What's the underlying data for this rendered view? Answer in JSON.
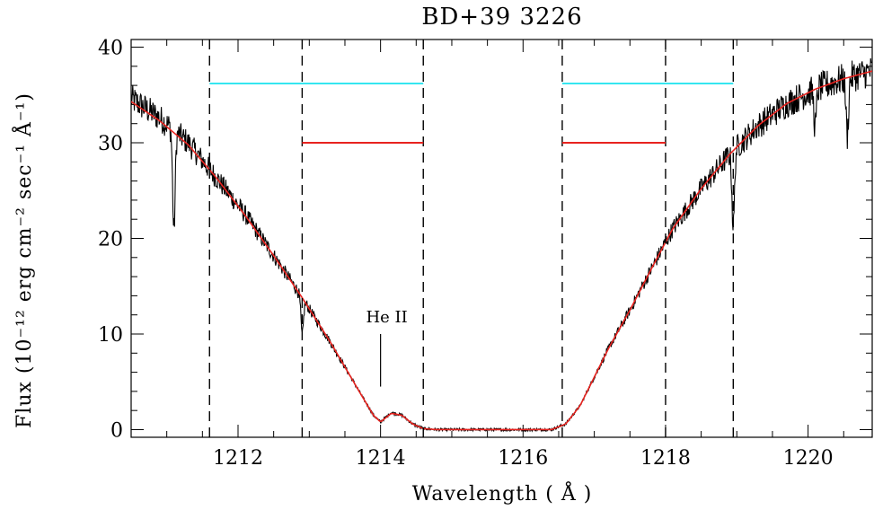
{
  "chart_data": {
    "type": "line",
    "title": "BD+39 3226",
    "xlabel": "Wavelength ( Å )",
    "ylabel": "Flux (10⁻¹² erg cm⁻² sec⁻¹ Å⁻¹)",
    "xlim": [
      1210.5,
      1220.9
    ],
    "ylim": [
      -0.8,
      40.8
    ],
    "xticks": [
      1212,
      1214,
      1216,
      1218,
      1220
    ],
    "yticks": [
      0,
      10,
      20,
      30,
      40
    ],
    "series": [
      {
        "kind": "observed",
        "color": "#000000",
        "x": [
          1210.5,
          1210.9,
          1211.3,
          1211.7,
          1212.1,
          1212.5,
          1212.9,
          1213.3,
          1213.7,
          1213.9,
          1214.0,
          1214.15,
          1214.3,
          1214.45,
          1214.6,
          1214.8,
          1215.2,
          1215.6,
          1216.0,
          1216.4,
          1216.6,
          1216.8,
          1217.0,
          1217.2,
          1217.5,
          1217.8,
          1218.1,
          1218.5,
          1218.9,
          1219.3,
          1219.7,
          1220.1,
          1220.5,
          1220.9
        ],
        "y": [
          34.6,
          32.6,
          30.0,
          26.3,
          22.5,
          18.2,
          13.8,
          9.1,
          4.0,
          1.5,
          0.8,
          1.8,
          1.5,
          0.6,
          0.1,
          0,
          0,
          0,
          0,
          0,
          0.6,
          2.5,
          5.5,
          8.5,
          12.5,
          16.8,
          21.0,
          25.2,
          28.8,
          31.8,
          34.1,
          35.6,
          36.7,
          37.5
        ]
      },
      {
        "kind": "model",
        "color": "#e8231f",
        "x": [
          1210.5,
          1210.9,
          1211.3,
          1211.7,
          1212.1,
          1212.5,
          1212.9,
          1213.3,
          1213.7,
          1213.9,
          1214.0,
          1214.15,
          1214.3,
          1214.45,
          1214.6,
          1214.8,
          1215.2,
          1215.6,
          1216.0,
          1216.4,
          1216.6,
          1216.8,
          1217.0,
          1217.2,
          1217.5,
          1217.8,
          1218.1,
          1218.5,
          1218.9,
          1219.3,
          1219.7,
          1220.1,
          1220.5,
          1220.9
        ],
        "y": [
          34.3,
          32.3,
          29.8,
          26.3,
          22.4,
          18.2,
          13.8,
          9.1,
          4.0,
          1.5,
          0.8,
          1.7,
          1.5,
          0.6,
          0.1,
          0,
          0,
          0,
          0,
          0,
          0.6,
          2.5,
          5.5,
          8.5,
          12.5,
          16.8,
          21.0,
          25.2,
          28.8,
          31.8,
          34.1,
          35.6,
          36.7,
          37.5
        ]
      }
    ],
    "vlines": [
      1211.6,
      1212.9,
      1214.6,
      1216.55,
      1218.0,
      1218.95
    ],
    "ranges": [
      {
        "color": "#35e6f0",
        "y": 36.2,
        "x": [
          1211.6,
          1214.6
        ]
      },
      {
        "color": "#35e6f0",
        "y": 36.2,
        "x": [
          1216.55,
          1218.95
        ]
      },
      {
        "color": "#e8231f",
        "y": 30.0,
        "x": [
          1212.9,
          1214.6
        ]
      },
      {
        "color": "#e8231f",
        "y": 30.0,
        "x": [
          1216.55,
          1218.0
        ]
      }
    ],
    "annotations": [
      {
        "text": "He II",
        "x": 1214.0,
        "y_line": [
          4.5,
          10.0
        ]
      }
    ]
  }
}
